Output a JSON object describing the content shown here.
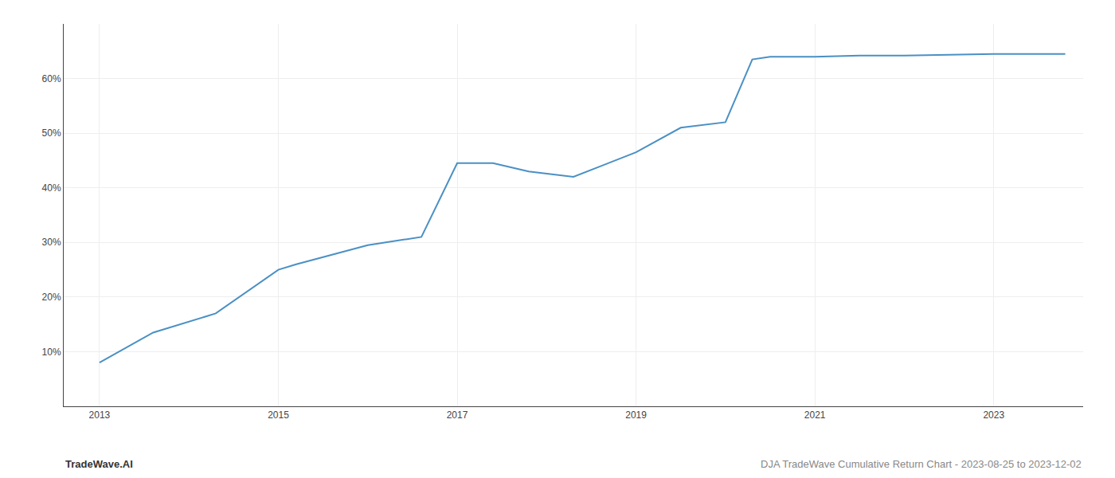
{
  "chart_data": {
    "type": "line",
    "x": [
      2013.0,
      2013.6,
      2014.3,
      2015.0,
      2015.2,
      2016.0,
      2016.6,
      2017.0,
      2017.4,
      2017.8,
      2018.3,
      2019.0,
      2019.5,
      2020.0,
      2020.3,
      2020.5,
      2021.0,
      2021.5,
      2022.0,
      2022.5,
      2023.0,
      2023.8
    ],
    "values": [
      8.0,
      13.5,
      17.0,
      25.0,
      26.0,
      29.5,
      31.0,
      44.5,
      44.5,
      43.0,
      42.0,
      46.5,
      51.0,
      52.0,
      63.5,
      64.0,
      64.0,
      64.2,
      64.2,
      64.3,
      64.5,
      64.5
    ],
    "color": "#4a90c4",
    "xlim": [
      2012.6,
      2024.0
    ],
    "xticks": [
      2013,
      2015,
      2017,
      2019,
      2021,
      2023
    ],
    "ylim": [
      0,
      70
    ],
    "yticks": [
      {
        "value": 10,
        "label": "10%"
      },
      {
        "value": 20,
        "label": "20%"
      },
      {
        "value": 30,
        "label": "30%"
      },
      {
        "value": 40,
        "label": "40%"
      },
      {
        "value": 50,
        "label": "50%"
      },
      {
        "value": 60,
        "label": "60%"
      }
    ],
    "grid": true,
    "annotations": [
      "TradeWave.AI",
      "DJA TradeWave Cumulative Return Chart - 2023-08-25 to 2023-12-02"
    ]
  }
}
